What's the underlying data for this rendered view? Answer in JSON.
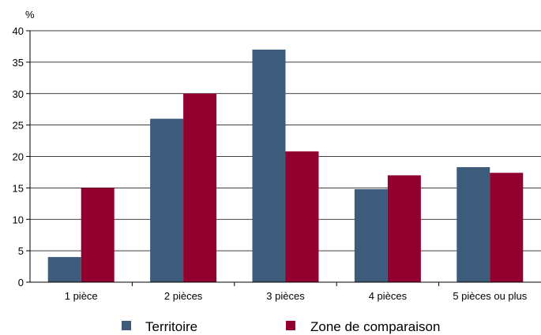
{
  "chart_data": {
    "type": "bar",
    "ylabel": "%",
    "ylim": [
      0,
      40
    ],
    "yticks": [
      0,
      5,
      10,
      15,
      20,
      25,
      30,
      35,
      40
    ],
    "grid": true,
    "legend_position": "bottom",
    "categories": [
      "1 pièce",
      "2 pièces",
      "3 pièces",
      "4 pièces",
      "5 pièces ou plus"
    ],
    "series": [
      {
        "name": "Territoire",
        "color": "#3d5b7a",
        "values": [
          4,
          26,
          37,
          14.8,
          18.3
        ]
      },
      {
        "name": "Zone de comparaison",
        "color": "#92002f",
        "values": [
          15,
          30,
          20.8,
          17,
          17.4
        ]
      }
    ]
  }
}
